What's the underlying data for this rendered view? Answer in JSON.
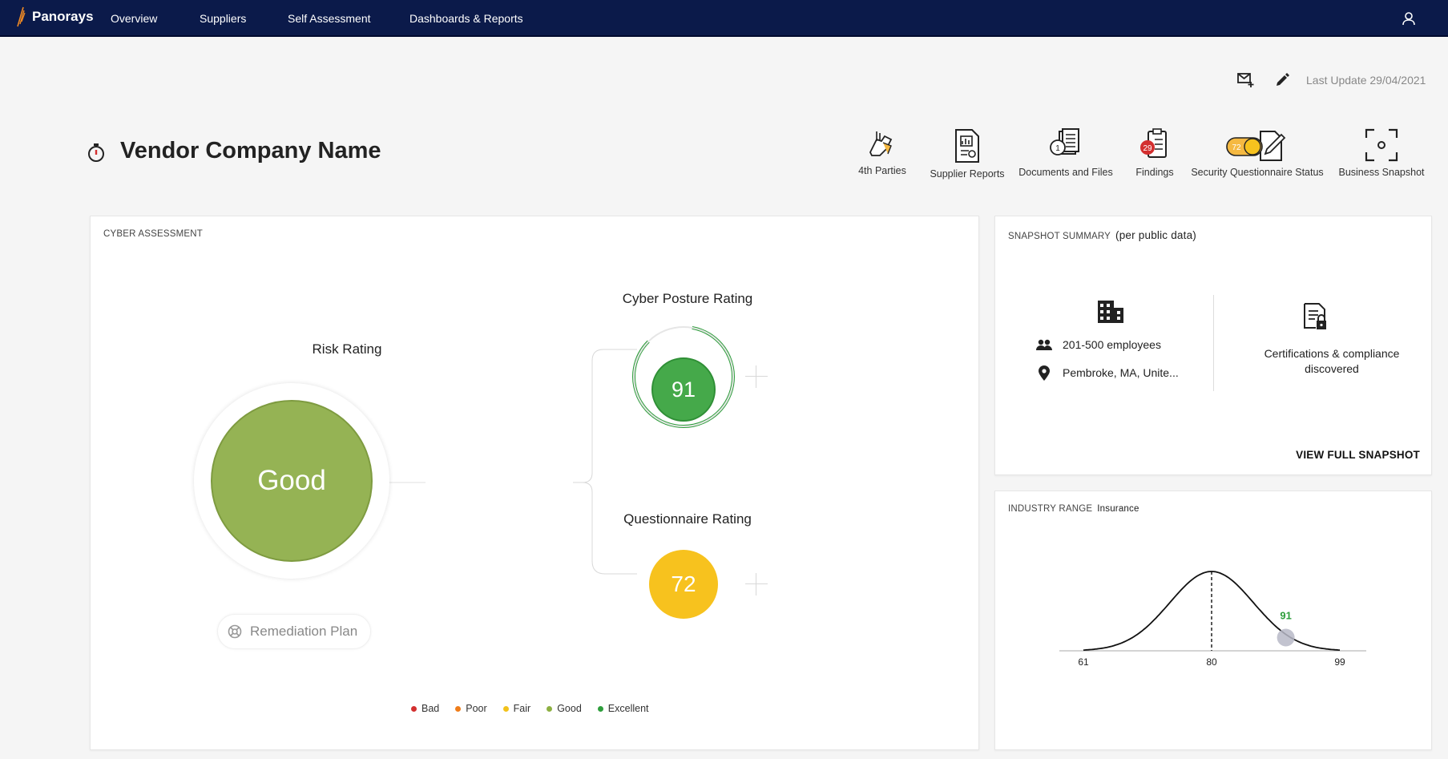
{
  "nav": {
    "brand": "Panorays",
    "items": [
      {
        "label": "Overview"
      },
      {
        "label": "Suppliers"
      },
      {
        "label": "Self Assessment"
      },
      {
        "label": "Dashboards & Reports"
      }
    ]
  },
  "toolbar": {
    "last_update": "Last Update 29/04/2021"
  },
  "vendor": {
    "name": "Vendor Company Name"
  },
  "quick_actions": [
    {
      "label": "4th Parties",
      "icon": "fourth-parties-icon"
    },
    {
      "label": "Supplier Reports",
      "icon": "supplier-reports-icon"
    },
    {
      "label": "Documents and Files",
      "icon": "documents-icon",
      "badge": "1"
    },
    {
      "label": "Findings",
      "icon": "findings-icon",
      "badge": "29"
    },
    {
      "label": "Security Questionnaire Status",
      "icon": "questionnaire-status-icon",
      "badge": "72"
    },
    {
      "label": "Business Snapshot",
      "icon": "business-snapshot-icon"
    }
  ],
  "cyber_assessment": {
    "title": "CYBER ASSESSMENT",
    "risk_rating": {
      "label": "Risk Rating",
      "value": "Good",
      "color": "#95b354"
    },
    "cyber_posture": {
      "label": "Cyber Posture Rating",
      "value": "91",
      "color": "#45a94a"
    },
    "questionnaire": {
      "label": "Questionnaire Rating",
      "value": "72",
      "color": "#f7c21e"
    },
    "remediation_label": "Remediation Plan",
    "legend": [
      {
        "label": "Bad",
        "color": "#d32f2f"
      },
      {
        "label": "Poor",
        "color": "#ef7d1a"
      },
      {
        "label": "Fair",
        "color": "#f2c21b"
      },
      {
        "label": "Good",
        "color": "#8db042"
      },
      {
        "label": "Excellent",
        "color": "#2e9e3c"
      }
    ]
  },
  "snapshot": {
    "title": "SNAPSHOT SUMMARY",
    "subtitle": "(per public data)",
    "employees": "201-500 employees",
    "location": "Pembroke, MA, Unite...",
    "certifications": "Certifications & compliance discovered",
    "view_full": "VIEW FULL SNAPSHOT"
  },
  "industry_range": {
    "title": "INDUSTRY RANGE",
    "industry": "Insurance",
    "min": "61",
    "median": "80",
    "max": "99",
    "marker": "91"
  },
  "chart_data": {
    "type": "area",
    "title": "",
    "x_ticks": [
      61,
      80,
      99
    ],
    "xlim": [
      61,
      99
    ],
    "median": 80,
    "marker": 91,
    "marker_color": "#2e9e3c"
  }
}
